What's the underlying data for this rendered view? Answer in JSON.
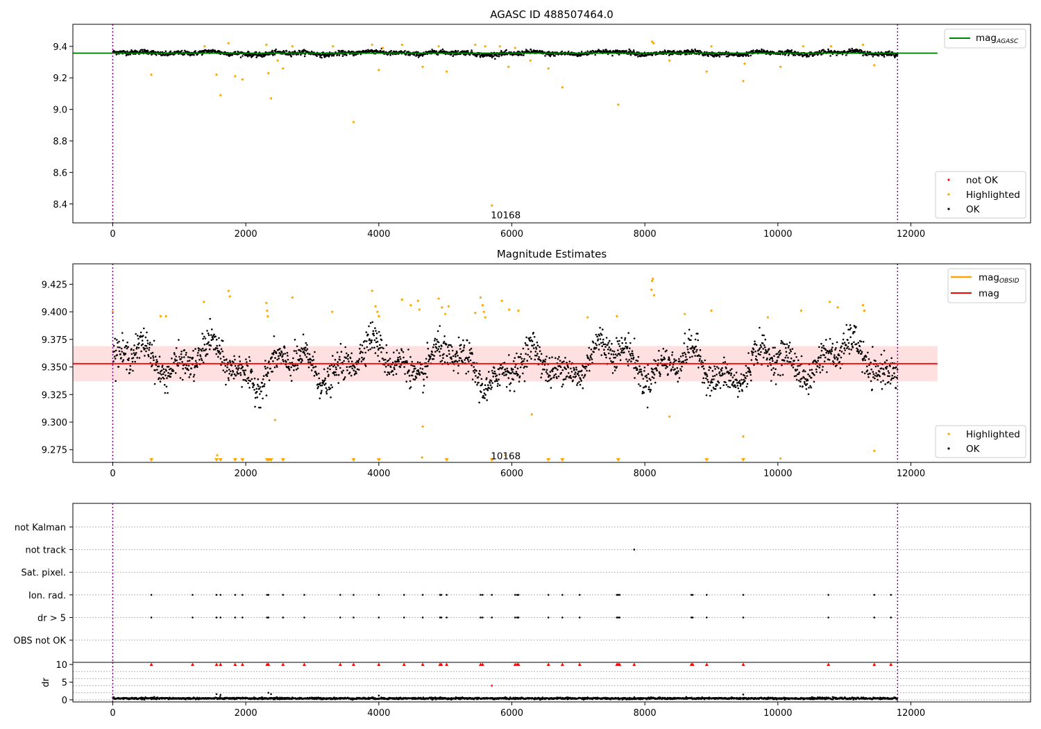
{
  "chart_data": [
    {
      "type": "scatter",
      "title": "AGASC ID 488507464.0",
      "xlim": [
        -600,
        13800
      ],
      "ylim": [
        8.28,
        9.54
      ],
      "xticks": [
        "0",
        "2000",
        "4000",
        "6000",
        "8000",
        "10000",
        "12000"
      ],
      "xtick_values": [
        0,
        2000,
        4000,
        6000,
        8000,
        10000,
        12000
      ],
      "yticks": [
        "9.4",
        "9.2",
        "9.0",
        "8.8",
        "8.6",
        "8.4"
      ],
      "ytick_values": [
        9.4,
        9.2,
        9.0,
        8.8,
        8.6,
        8.4
      ],
      "obsid_bounds": [
        0,
        11800
      ],
      "annotation": {
        "text": "10168",
        "x": 5700,
        "y": 8.33
      },
      "lines": [
        {
          "name": "mag",
          "subscript": "AGASC",
          "y": 9.357,
          "x": [
            -600,
            12400
          ],
          "color": "#008000"
        }
      ],
      "ok_band": {
        "center": 9.357,
        "spread": 0.012,
        "x": [
          0,
          11800
        ]
      },
      "highlighted_points": [
        [
          580,
          9.22
        ],
        [
          1560,
          9.22
        ],
        [
          1620,
          9.09
        ],
        [
          1840,
          9.21
        ],
        [
          1950,
          9.19
        ],
        [
          2340,
          9.23
        ],
        [
          2380,
          9.07
        ],
        [
          2480,
          9.31
        ],
        [
          2560,
          9.26
        ],
        [
          3620,
          8.92
        ],
        [
          4000,
          9.25
        ],
        [
          4660,
          9.27
        ],
        [
          5020,
          9.24
        ],
        [
          5700,
          8.39
        ],
        [
          5950,
          9.27
        ],
        [
          6280,
          9.31
        ],
        [
          6550,
          9.26
        ],
        [
          6760,
          9.14
        ],
        [
          7600,
          9.03
        ],
        [
          8370,
          9.31
        ],
        [
          8930,
          9.24
        ],
        [
          9480,
          9.18
        ],
        [
          9500,
          9.29
        ],
        [
          10040,
          9.27
        ],
        [
          11450,
          9.28
        ],
        [
          1380,
          9.4
        ],
        [
          1740,
          9.42
        ],
        [
          2310,
          9.41
        ],
        [
          2700,
          9.4
        ],
        [
          3310,
          9.4
        ],
        [
          3900,
          9.41
        ],
        [
          4060,
          9.39
        ],
        [
          4350,
          9.41
        ],
        [
          4900,
          9.4
        ],
        [
          5450,
          9.41
        ],
        [
          5600,
          9.4
        ],
        [
          5820,
          9.4
        ],
        [
          6050,
          9.39
        ],
        [
          8110,
          9.43
        ],
        [
          8130,
          9.42
        ],
        [
          9000,
          9.4
        ],
        [
          10380,
          9.4
        ],
        [
          10800,
          9.4
        ],
        [
          11280,
          9.41
        ]
      ],
      "legend": [
        {
          "label": "not OK",
          "color": "#ff0000"
        },
        {
          "label": "Highlighted",
          "color": "#ffa500"
        },
        {
          "label": "OK",
          "color": "#000000"
        }
      ]
    },
    {
      "type": "scatter",
      "title": "Magnitude Estimates",
      "xlim": [
        -600,
        13800
      ],
      "ylim": [
        9.2635,
        9.4435
      ],
      "xticks": [
        "0",
        "2000",
        "4000",
        "6000",
        "8000",
        "10000",
        "12000"
      ],
      "xtick_values": [
        0,
        2000,
        4000,
        6000,
        8000,
        10000,
        12000
      ],
      "yticks": [
        "9.425",
        "9.400",
        "9.375",
        "9.350",
        "9.325",
        "9.300",
        "9.275"
      ],
      "ytick_values": [
        9.425,
        9.4,
        9.375,
        9.35,
        9.325,
        9.3,
        9.275
      ],
      "obsid_bounds": [
        0,
        11800
      ],
      "annotation": {
        "text": "10168",
        "x": 5700,
        "y": 9.2695
      },
      "mag_line": {
        "name": "mag",
        "y": 9.353,
        "x": [
          -600,
          12400
        ],
        "color": "#ff0000"
      },
      "mag_band": {
        "y": [
          9.337,
          9.369
        ],
        "x": [
          -600,
          12400
        ]
      },
      "obsid_mag": {
        "name": "mag",
        "subscript": "OBSID",
        "color": "#ffa500"
      },
      "highlighted_points": [
        [
          0,
          9.4
        ],
        [
          720,
          9.396
        ],
        [
          800,
          9.396
        ],
        [
          1370,
          9.409
        ],
        [
          1570,
          9.27
        ],
        [
          1740,
          9.419
        ],
        [
          1760,
          9.414
        ],
        [
          2310,
          9.408
        ],
        [
          2320,
          9.401
        ],
        [
          2330,
          9.396
        ],
        [
          2440,
          9.302
        ],
        [
          2700,
          9.413
        ],
        [
          3300,
          9.4
        ],
        [
          3900,
          9.419
        ],
        [
          3950,
          9.405
        ],
        [
          3980,
          9.4
        ],
        [
          4000,
          9.396
        ],
        [
          4350,
          9.411
        ],
        [
          4480,
          9.406
        ],
        [
          4590,
          9.41
        ],
        [
          4610,
          9.402
        ],
        [
          4660,
          9.296
        ],
        [
          4650,
          9.268
        ],
        [
          4900,
          9.412
        ],
        [
          4950,
          9.404
        ],
        [
          5000,
          9.398
        ],
        [
          5050,
          9.405
        ],
        [
          5450,
          9.399
        ],
        [
          5530,
          9.413
        ],
        [
          5560,
          9.406
        ],
        [
          5580,
          9.4
        ],
        [
          5600,
          9.395
        ],
        [
          5850,
          9.41
        ],
        [
          5900,
          9.27
        ],
        [
          5960,
          9.402
        ],
        [
          6100,
          9.401
        ],
        [
          6300,
          9.307
        ],
        [
          7140,
          9.395
        ],
        [
          7580,
          9.396
        ],
        [
          8100,
          9.42
        ],
        [
          8110,
          9.428
        ],
        [
          8120,
          9.43
        ],
        [
          8140,
          9.415
        ],
        [
          8370,
          9.305
        ],
        [
          8600,
          9.398
        ],
        [
          9000,
          9.401
        ],
        [
          9480,
          9.287
        ],
        [
          9850,
          9.395
        ],
        [
          10040,
          9.267
        ],
        [
          10350,
          9.401
        ],
        [
          10780,
          9.409
        ],
        [
          10900,
          9.404
        ],
        [
          11280,
          9.406
        ],
        [
          11300,
          9.401
        ],
        [
          11450,
          9.274
        ]
      ],
      "off_scale_x": [
        580,
        1560,
        1620,
        1840,
        1950,
        2320,
        2350,
        2380,
        2560,
        3620,
        4000,
        5020,
        5700,
        6550,
        6760,
        7600,
        8930,
        9480
      ],
      "legend": [
        {
          "label": "mag",
          "subscript": "OBSID",
          "color": "#ffa500"
        },
        {
          "label": "mag",
          "color": "#ff0000"
        }
      ],
      "legend2": [
        {
          "label": "Highlighted",
          "color": "#ffa500"
        },
        {
          "label": "OK",
          "color": "#000000"
        }
      ]
    },
    {
      "type": "scatter",
      "title": "",
      "xlim": [
        -600,
        13800
      ],
      "categories": [
        "not Kalman",
        "not track",
        "Sat. pixel.",
        "Ion. rad.",
        "dr > 5",
        "OBS not OK"
      ],
      "obsid_bounds": [
        0,
        11800
      ],
      "flag_points": {
        "not track": [
          7840
        ],
        "Ion. rad.": [
          580,
          1200,
          1560,
          1620,
          1840,
          1950,
          2320,
          2340,
          2560,
          2880,
          3420,
          3620,
          4000,
          4380,
          4660,
          4920,
          4940,
          5020,
          5530,
          5560,
          5700,
          6050,
          6080,
          6100,
          6550,
          6760,
          7020,
          7580,
          7600,
          7620,
          8700,
          8720,
          8930,
          9480,
          10760,
          11450,
          11700
        ],
        "dr > 5": [
          580,
          1200,
          1560,
          1620,
          1840,
          1950,
          2320,
          2340,
          2560,
          2880,
          3420,
          3620,
          4000,
          4380,
          4660,
          4920,
          4940,
          5020,
          5530,
          5560,
          5700,
          6050,
          6080,
          6100,
          6550,
          6760,
          7020,
          7580,
          7600,
          7620,
          8700,
          8720,
          8930,
          9480,
          10760,
          11450,
          11700
        ]
      }
    },
    {
      "type": "scatter",
      "title": "",
      "xlabel": "",
      "ylabel": "dr",
      "xlim": [
        -600,
        13800
      ],
      "ylim": [
        -0.6,
        10.6
      ],
      "xticks": [
        "0",
        "2000",
        "4000",
        "6000",
        "8000",
        "10000",
        "12000"
      ],
      "xtick_values": [
        0,
        2000,
        4000,
        6000,
        8000,
        10000,
        12000
      ],
      "yticks": [
        "10",
        "5",
        "0"
      ],
      "ytick_values": [
        10,
        5,
        0
      ],
      "obsid_bounds": [
        0,
        11800
      ],
      "clipped_markers_x": [
        580,
        1200,
        1560,
        1620,
        1840,
        1950,
        2320,
        2340,
        2560,
        2880,
        3420,
        3620,
        4000,
        4380,
        4660,
        4920,
        4940,
        5020,
        5530,
        5560,
        6050,
        6080,
        6100,
        6550,
        6760,
        7020,
        7580,
        7600,
        7620,
        7840,
        8700,
        8720,
        8930,
        9480,
        10760,
        11450,
        11700
      ],
      "outlier_points": [
        [
          5700,
          4.0
        ],
        [
          1560,
          1.6
        ],
        [
          1620,
          1.4
        ],
        [
          2340,
          2.0
        ],
        [
          2380,
          1.6
        ],
        [
          9480,
          1.5
        ],
        [
          4000,
          1.2
        ]
      ],
      "baseline": {
        "mean": 0.4,
        "spread": 0.25
      }
    }
  ]
}
